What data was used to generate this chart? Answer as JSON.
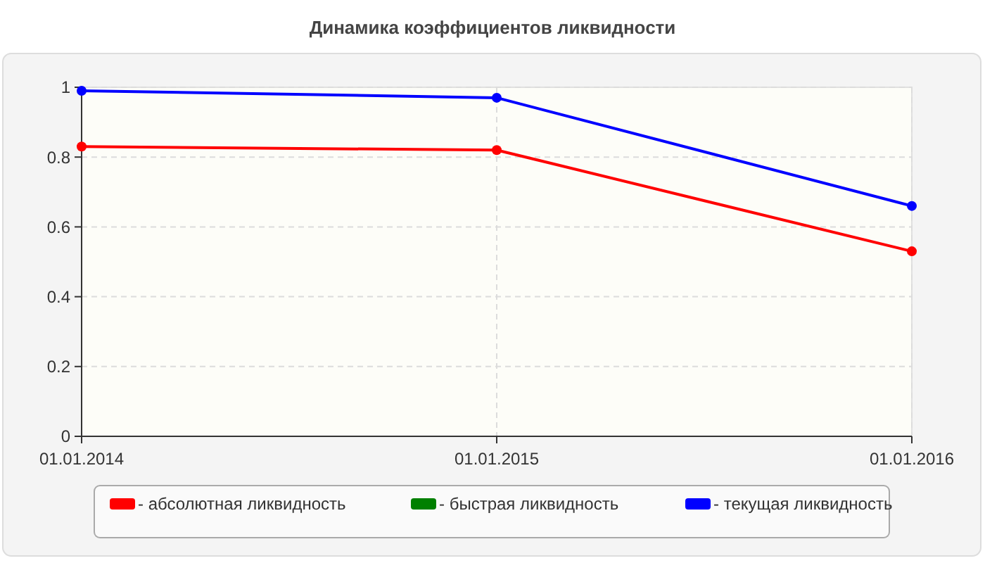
{
  "chart_data": {
    "type": "line",
    "title": "Динамика коэффициентов ликвидности",
    "categories": [
      "01.01.2014",
      "01.01.2015",
      "01.01.2016"
    ],
    "series": [
      {
        "name": "- абсолютная ликвидность",
        "color": "#ff0000",
        "values": [
          0.83,
          0.82,
          0.53
        ]
      },
      {
        "name": "- быстрая ликвидность",
        "color": "#008000",
        "values": [
          null,
          null,
          null
        ]
      },
      {
        "name": "- текущая ликвидность",
        "color": "#0000ff",
        "values": [
          0.99,
          0.97,
          0.66
        ]
      }
    ],
    "ylim": [
      0,
      1
    ],
    "yticks": [
      0,
      0.2,
      0.4,
      0.6,
      0.8,
      1
    ],
    "grid": true,
    "legend": "bottom",
    "marker": "circle",
    "line_style": "solid"
  }
}
